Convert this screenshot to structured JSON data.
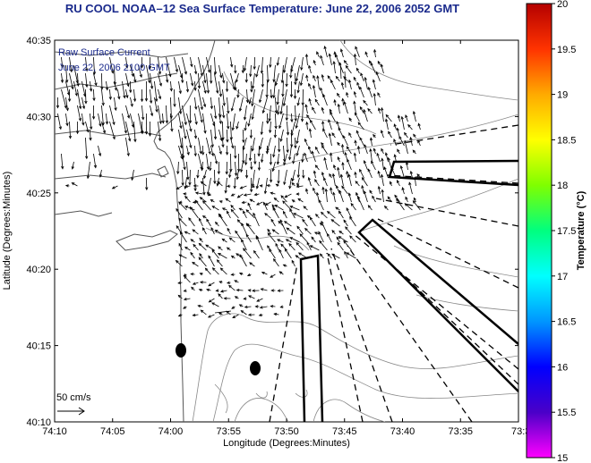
{
  "title": "RU COOL   NOAA–12  Sea Surface Temperature:  June 22, 2006 2052 GMT",
  "inset": {
    "line1": "Raw Surface Current",
    "line2": "June 22, 2006 2100 GMT",
    "scale_label": "50 cm/s"
  },
  "axes": {
    "xlabel": "Longitude (Degrees:Minutes)",
    "ylabel": "Latitude (Degrees:Minutes)",
    "x_ticks": [
      "74:10",
      "74:05",
      "74:00",
      "73:55",
      "73:50",
      "73:45",
      "73:40",
      "73:35",
      "73:3"
    ],
    "y_ticks": [
      "40:35",
      "40:30",
      "40:25",
      "40:20",
      "40:15",
      "40:10"
    ]
  },
  "colorbar": {
    "label": "Temperature (°C)",
    "ticks": [
      "20",
      "19.5",
      "19",
      "18.5",
      "18",
      "17.5",
      "17",
      "16.5",
      "16",
      "15.5",
      "15"
    ],
    "min": 15,
    "max": 20,
    "colors": [
      "#ff00ff",
      "#4a00c8",
      "#0000ff",
      "#0096ff",
      "#00ffff",
      "#00ff7f",
      "#7fff00",
      "#ffff00",
      "#ffaa00",
      "#ff3300",
      "#b40000"
    ]
  },
  "map": {
    "lon_range_minutes": [
      -190,
      -154
    ],
    "lat_range_minutes": [
      2410,
      2435
    ],
    "current_vectors": "raw surface current (HF radar)",
    "buoys": 2
  }
}
